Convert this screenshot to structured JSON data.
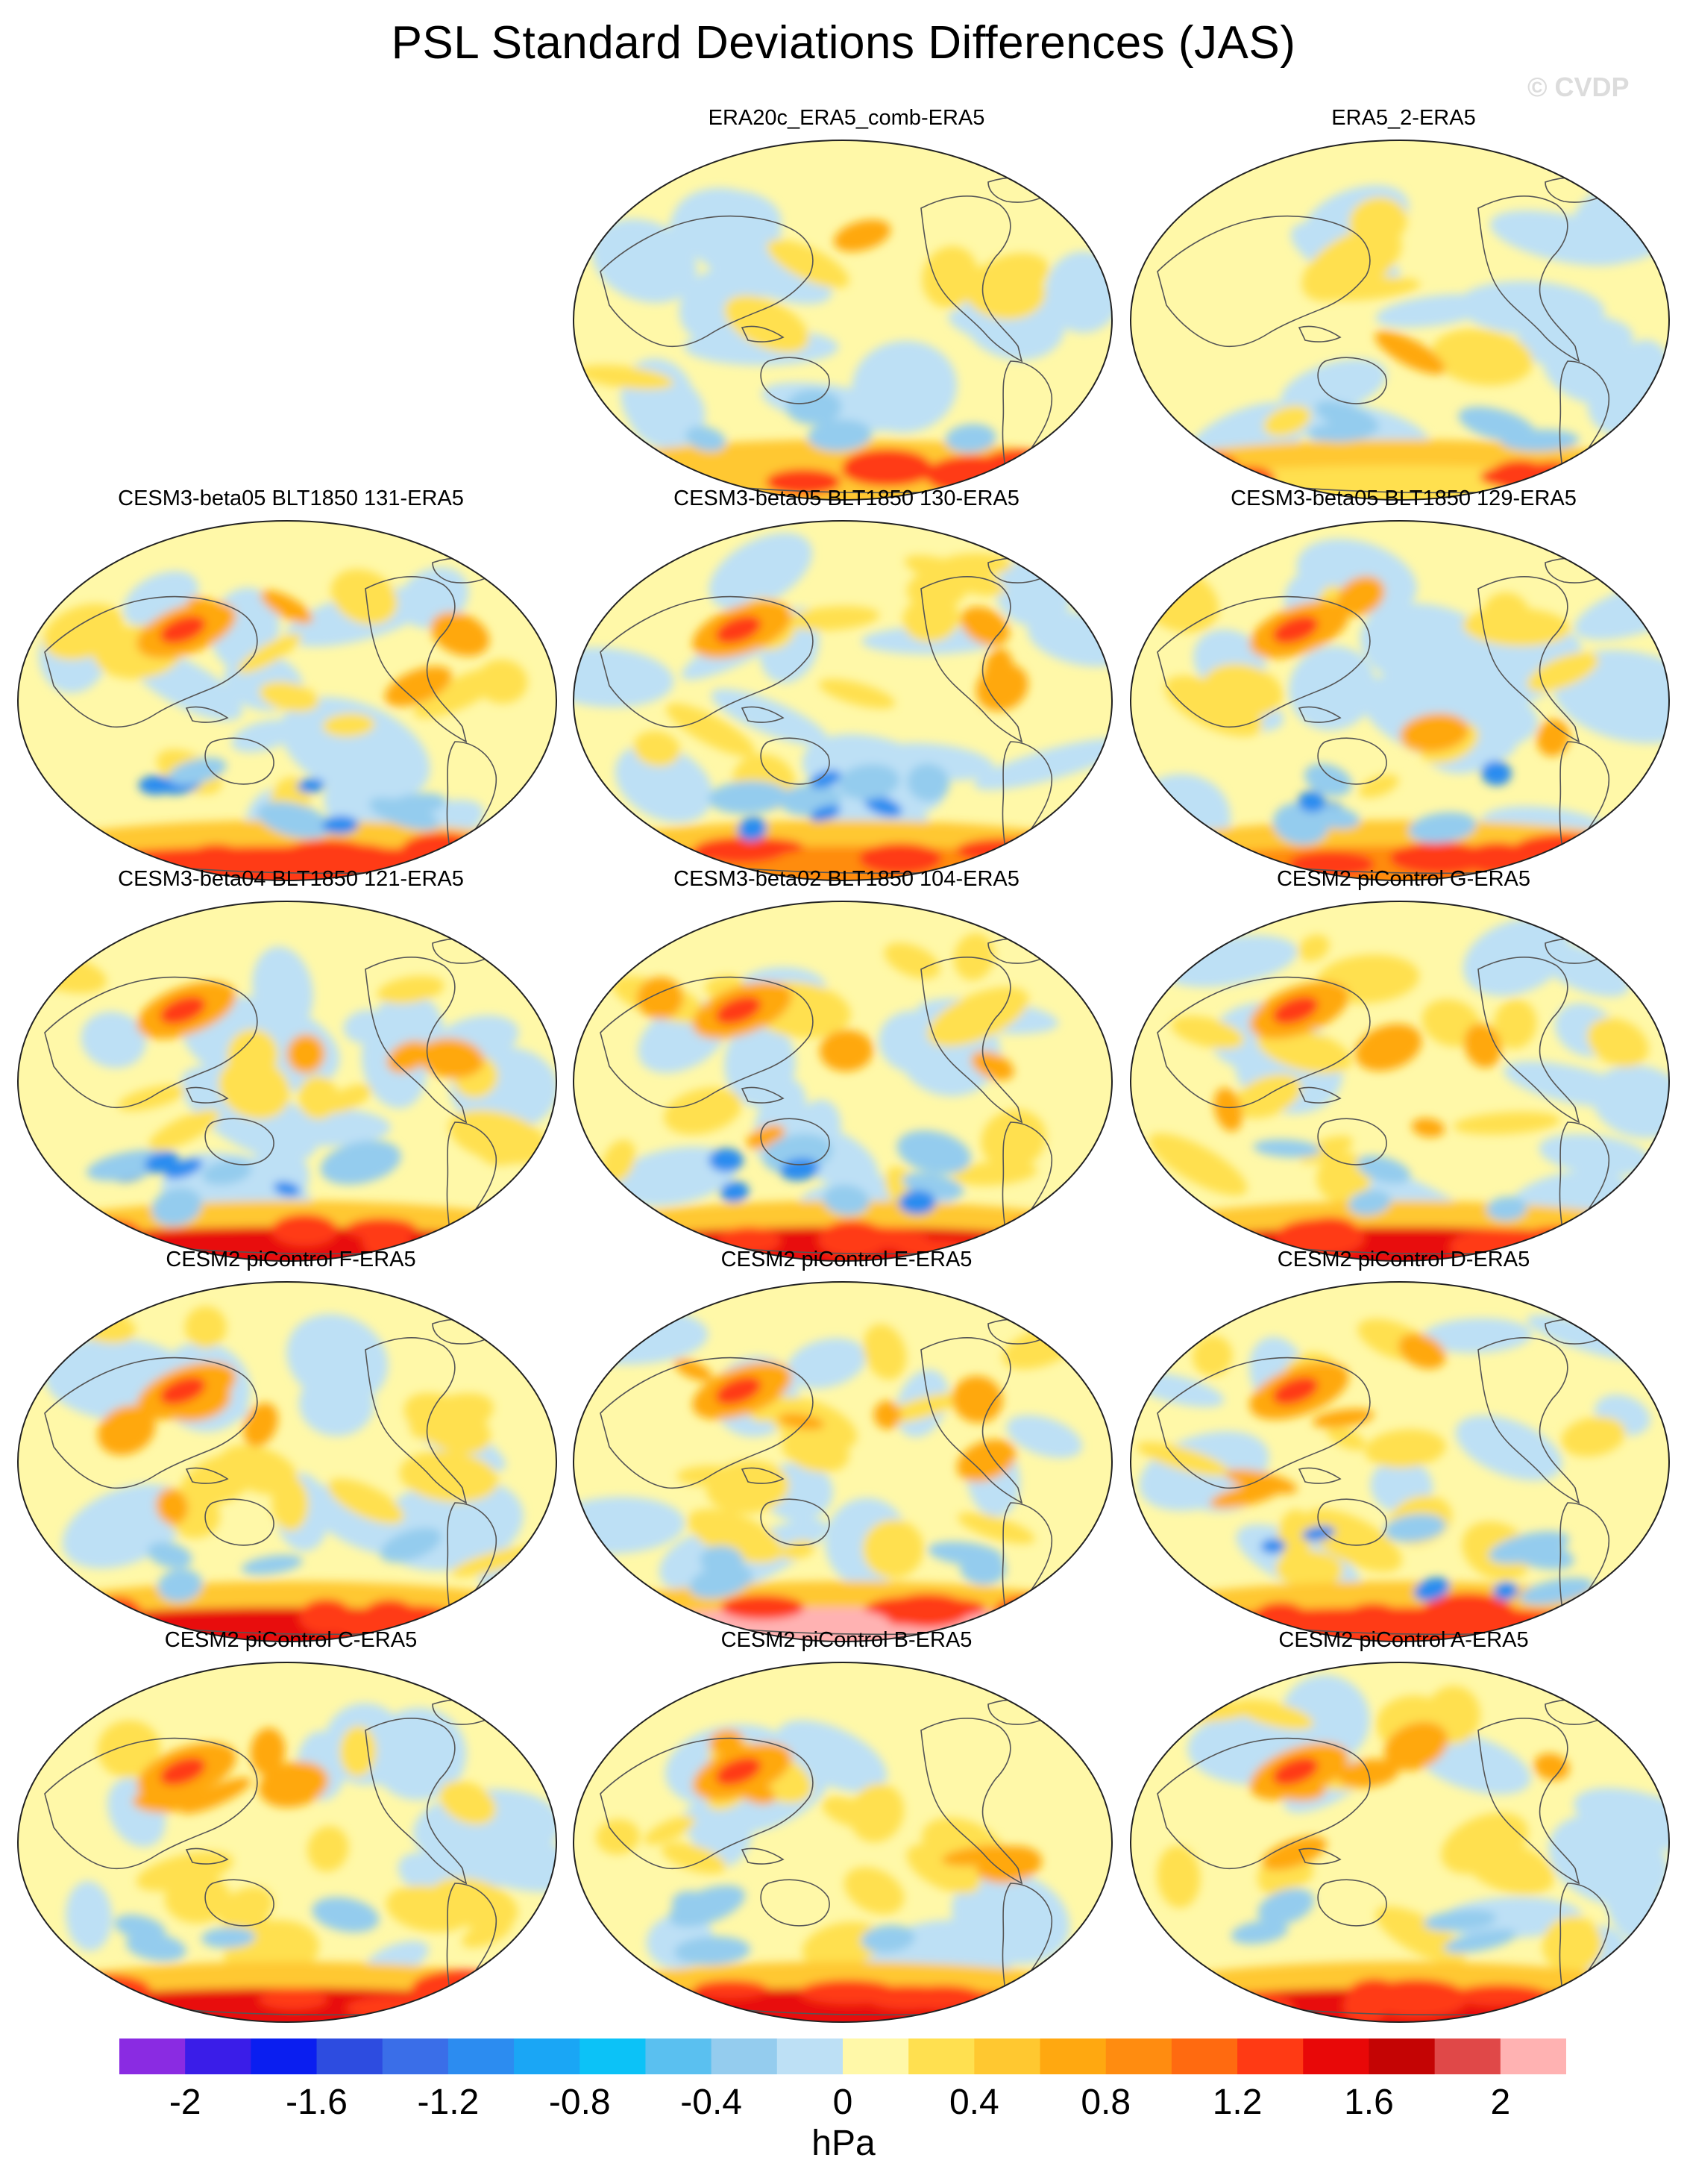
{
  "title": "PSL Standard Deviations Differences (JAS)",
  "watermark": "© CVDP",
  "panels": [
    {
      "id": "p1",
      "label": "ERA20c_ERA5_comb-ERA5",
      "row": 0,
      "col": 1
    },
    {
      "id": "p2",
      "label": "ERA5_2-ERA5",
      "row": 0,
      "col": 2
    },
    {
      "id": "p3",
      "label": "CESM3-beta05 BLT1850 131-ERA5",
      "row": 1,
      "col": 0
    },
    {
      "id": "p4",
      "label": "CESM3-beta05 BLT1850 130-ERA5",
      "row": 1,
      "col": 1
    },
    {
      "id": "p5",
      "label": "CESM3-beta05 BLT1850 129-ERA5",
      "row": 1,
      "col": 2
    },
    {
      "id": "p6",
      "label": "CESM3-beta04 BLT1850 121-ERA5",
      "row": 2,
      "col": 0
    },
    {
      "id": "p7",
      "label": "CESM3-beta02 BLT1850 104-ERA5",
      "row": 2,
      "col": 1
    },
    {
      "id": "p8",
      "label": "CESM2 piControl G-ERA5",
      "row": 2,
      "col": 2
    },
    {
      "id": "p9",
      "label": "CESM2 piControl F-ERA5",
      "row": 3,
      "col": 0
    },
    {
      "id": "p10",
      "label": "CESM2 piControl E-ERA5",
      "row": 3,
      "col": 1
    },
    {
      "id": "p11",
      "label": "CESM2 piControl D-ERA5",
      "row": 3,
      "col": 2
    },
    {
      "id": "p12",
      "label": "CESM2 piControl C-ERA5",
      "row": 4,
      "col": 0
    },
    {
      "id": "p13",
      "label": "CESM2 piControl B-ERA5",
      "row": 4,
      "col": 1
    },
    {
      "id": "p14",
      "label": "CESM2 piControl A-ERA5",
      "row": 4,
      "col": 2
    }
  ],
  "colorbar": {
    "unit": "hPa",
    "colors": [
      "#8a2be2",
      "#3a1de8",
      "#0a1ef0",
      "#2d4ce0",
      "#3a6ee8",
      "#2c8cf0",
      "#1aa6f5",
      "#0cc2f7",
      "#5ac0f0",
      "#94ccee",
      "#bde0f5",
      "#fff8a8",
      "#ffe050",
      "#ffc830",
      "#ffa810",
      "#ff8c10",
      "#ff6a10",
      "#ff3a14",
      "#e80808",
      "#c40404",
      "#e04848",
      "#ffb2b2"
    ],
    "tick_labels": [
      "-2",
      "-1.6",
      "-1.2",
      "-0.8",
      "-0.4",
      "0",
      "0.4",
      "0.8",
      "1.2",
      "1.6",
      "2"
    ]
  }
}
